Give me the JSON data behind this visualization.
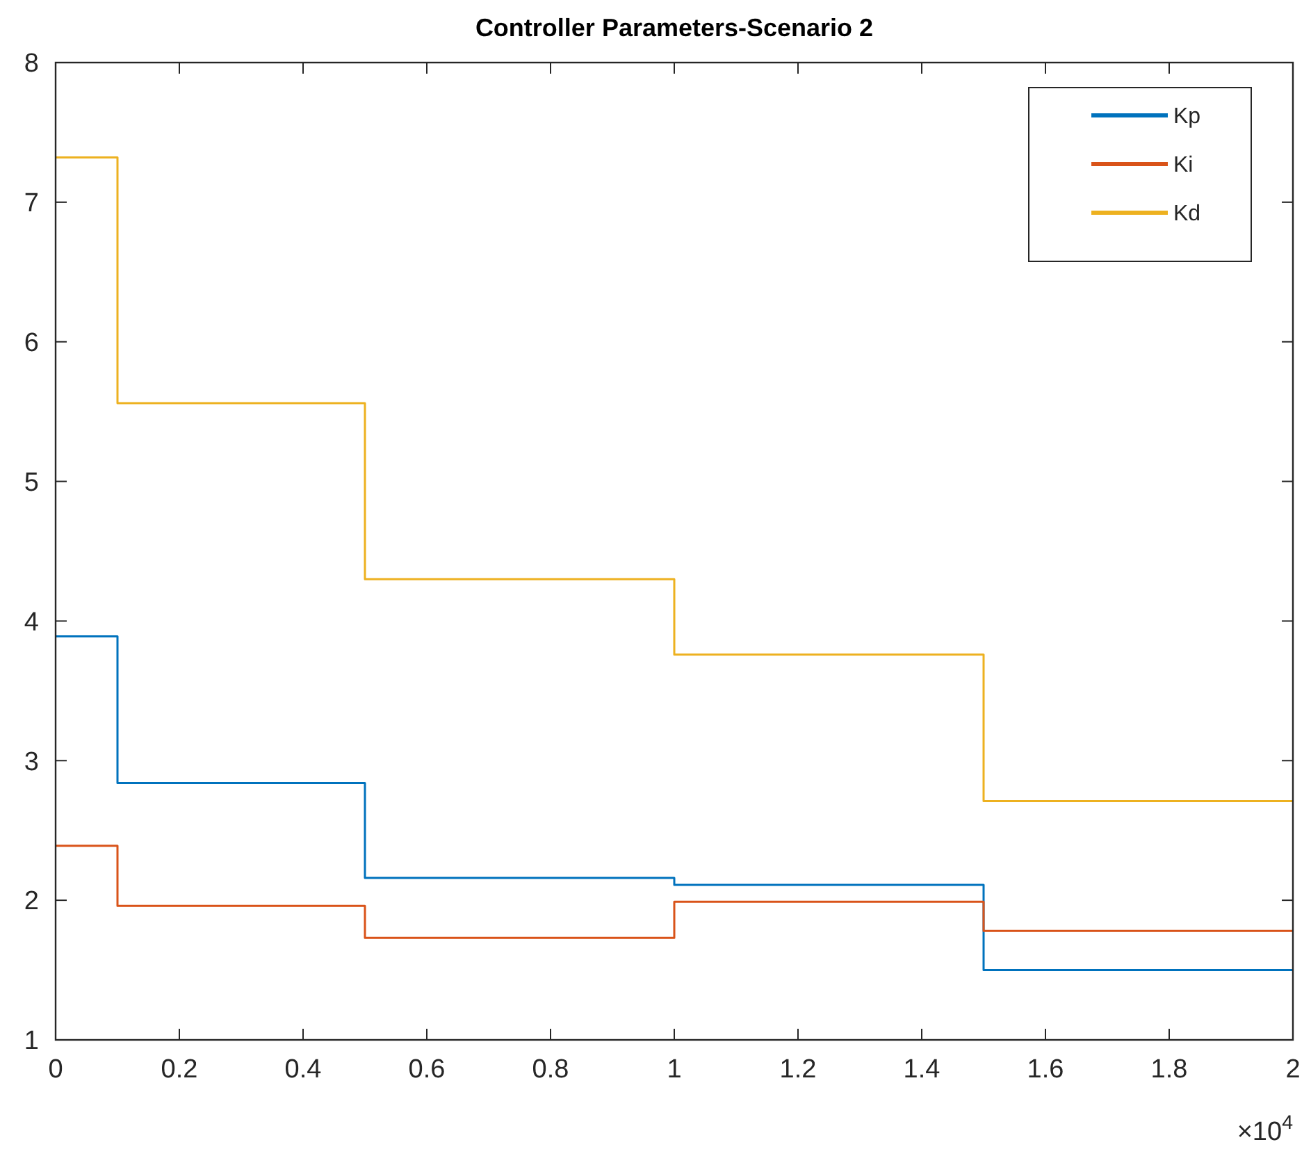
{
  "chart_data": {
    "type": "step",
    "title": "Controller Parameters-Scenario 2",
    "x": [
      0,
      0.1,
      0.5,
      1,
      1.5,
      2
    ],
    "series": [
      {
        "name": "Kp",
        "color": "#0072bd",
        "values": [
          3.89,
          2.84,
          2.16,
          2.11,
          1.5,
          1.5
        ]
      },
      {
        "name": "Ki",
        "color": "#d95319",
        "values": [
          2.39,
          1.96,
          1.73,
          1.99,
          1.78,
          1.78
        ]
      },
      {
        "name": "Kd",
        "color": "#edb120",
        "values": [
          7.32,
          5.56,
          4.3,
          3.76,
          2.71,
          2.71
        ]
      }
    ],
    "xlim": [
      0,
      2
    ],
    "xticks": [
      0,
      0.2,
      0.4,
      0.6,
      0.8,
      1,
      1.2,
      1.4,
      1.6,
      1.8,
      2
    ],
    "ylim": [
      1,
      8
    ],
    "yticks": [
      1,
      2,
      3,
      4,
      5,
      6,
      7,
      8
    ],
    "annotations": [
      "×10$^{4}$"
    ],
    "legend": "top right",
    "grid": false
  }
}
